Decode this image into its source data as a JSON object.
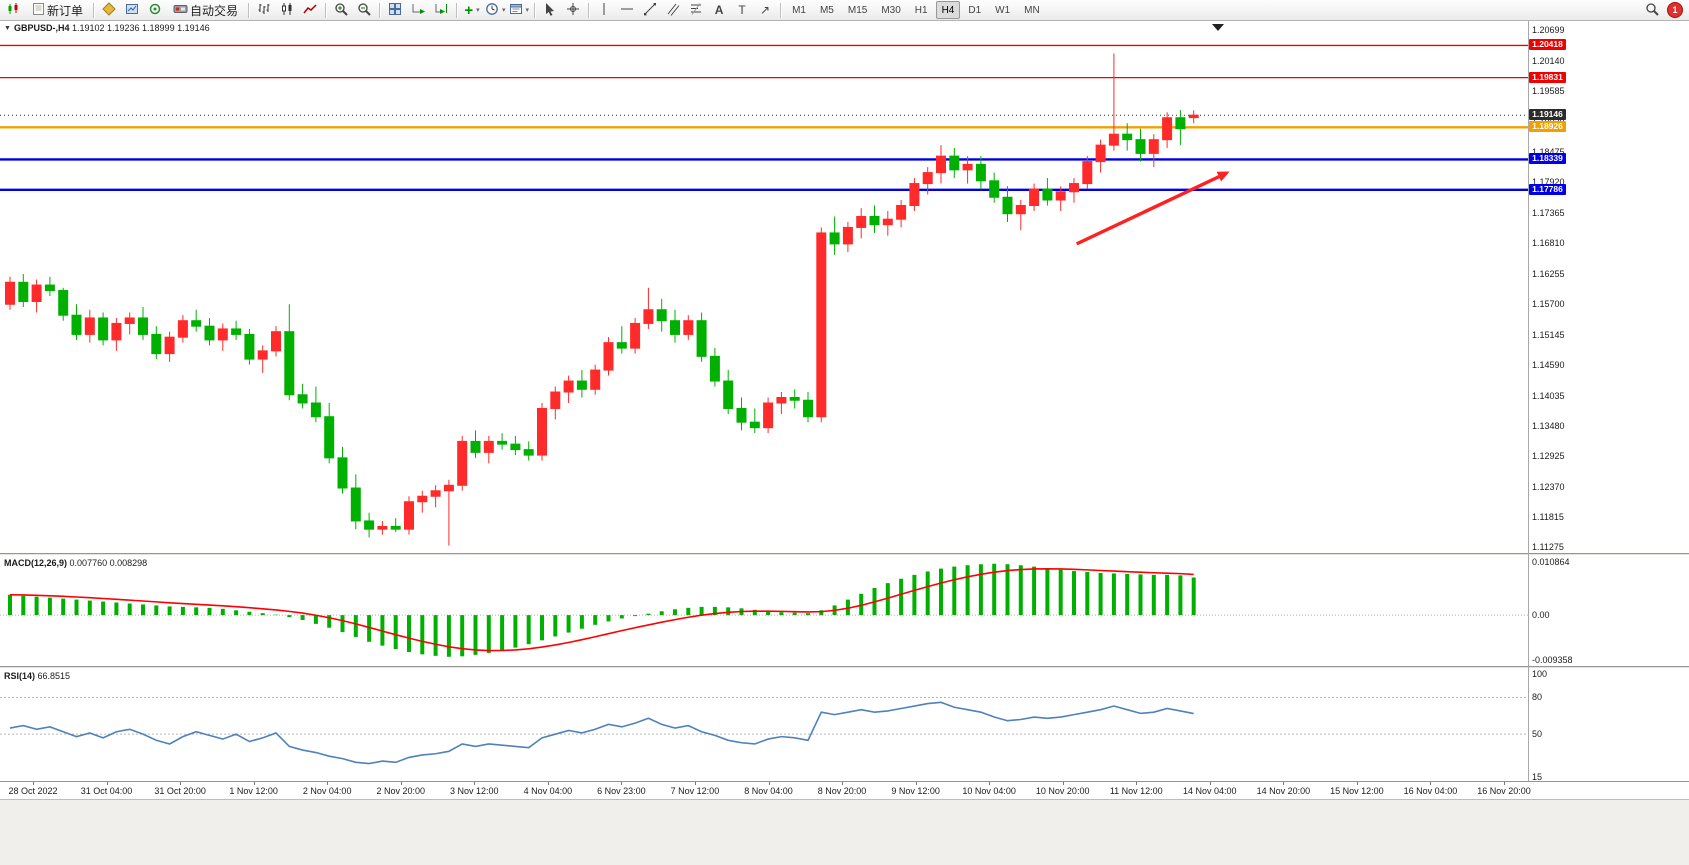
{
  "glyphs": {
    "collapse": "▼",
    "caret": "▾",
    "indicators_plus": "+",
    "text_tool": "A",
    "label_tool": "T",
    "arrows_tool": "↗"
  },
  "toolbar": {
    "new_order": "新订单",
    "autotrading": "自动交易",
    "timeframes": [
      "M1",
      "M5",
      "M15",
      "M30",
      "H1",
      "H4",
      "D1",
      "W1",
      "MN"
    ],
    "active_timeframe": "H4",
    "badge": "1"
  },
  "icons": {
    "new_chart": "mini-candles-svg",
    "new_order": "page-svg",
    "metaeditor": "gold-diamond-svg",
    "strategy_tester": "blue-chart-svg",
    "market_watch": "green-ring-svg",
    "autotrading": "chip-red-led-svg",
    "bar_chart_type": "ohlc-bars-svg",
    "candlestick_type": "candles-svg",
    "line_chart_type": "zigzag-svg",
    "zoom_in": "magnifier-plus-svg",
    "zoom_out": "magnifier-minus-svg",
    "tile_windows": "grid-2x2-svg",
    "auto_scroll": "chart-green-arrow-svg",
    "chart_shift": "chart-shift-arrow-svg",
    "indicators": "green-plus-glyph",
    "periods": "clock-svg",
    "templates": "framed-chart-svg",
    "cursor": "arrow-pointer-svg",
    "crosshair": "crosshair-svg",
    "vertical_line": "vline-svg",
    "horizontal_line": "hline-svg",
    "trendline": "diag-line-svg",
    "channel": "parallel-lines-svg",
    "fibonacci": "fibo-lines-svg",
    "search": "magnifier-svg",
    "notification": "red-circle-badge"
  },
  "chart_data": {
    "type": "candlestick",
    "symbol_label": "GBPUSD-,H4",
    "ohlc_text": "1.19102 1.19236 1.18999 1.19146",
    "timeframe": "H4",
    "colors": {
      "up": "#ff2a2a",
      "down": "#00b000",
      "background": "#ffffff"
    },
    "price_axis": {
      "ticks": [
        "1.20699",
        "1.20140",
        "1.19585",
        "1.19030",
        "1.18475",
        "1.17920",
        "1.17365",
        "1.16810",
        "1.16255",
        "1.15700",
        "1.15145",
        "1.14590",
        "1.14035",
        "1.13480",
        "1.12925",
        "1.12370",
        "1.11815",
        "1.11275"
      ]
    },
    "levels": [
      {
        "price": 1.20418,
        "label": "1.20418",
        "color": "#f00000",
        "style": "solid",
        "width": 1.3
      },
      {
        "price": 1.19831,
        "label": "1.19831",
        "color": "#f00000",
        "style": "solid",
        "width": 1.3
      },
      {
        "price": 1.19146,
        "label": "1.19146",
        "color": "#2b2b2b",
        "style": "dotted",
        "width": 1
      },
      {
        "price": 1.18926,
        "label": "1.18926",
        "color": "#f0a000",
        "style": "solid",
        "width": 2.4
      },
      {
        "price": 1.18339,
        "label": "1.18339",
        "color": "#0000e8",
        "style": "solid",
        "width": 2.4
      },
      {
        "price": 1.17786,
        "label": "1.17786",
        "color": "#0000e8",
        "style": "solid",
        "width": 2.4
      }
    ],
    "time_axis": [
      "28 Oct 2022",
      "31 Oct 04:00",
      "31 Oct 20:00",
      "1 Nov 12:00",
      "2 Nov 04:00",
      "2 Nov 20:00",
      "3 Nov 12:00",
      "4 Nov 04:00",
      "6 Nov 23:00",
      "7 Nov 12:00",
      "8 Nov 04:00",
      "8 Nov 20:00",
      "9 Nov 12:00",
      "10 Nov 04:00",
      "10 Nov 20:00",
      "11 Nov 12:00",
      "14 Nov 04:00",
      "14 Nov 20:00",
      "15 Nov 12:00",
      "16 Nov 04:00",
      "16 Nov 20:00"
    ],
    "candles": [
      [
        1.157,
        1.162,
        1.156,
        1.161
      ],
      [
        1.161,
        1.1625,
        1.1565,
        1.1575
      ],
      [
        1.1575,
        1.1615,
        1.1555,
        1.1605
      ],
      [
        1.1605,
        1.162,
        1.1585,
        1.1595
      ],
      [
        1.1595,
        1.16,
        1.154,
        1.155
      ],
      [
        1.155,
        1.157,
        1.1505,
        1.1515
      ],
      [
        1.1515,
        1.156,
        1.15,
        1.1545
      ],
      [
        1.1545,
        1.1555,
        1.1495,
        1.1505
      ],
      [
        1.1505,
        1.1545,
        1.1485,
        1.1535
      ],
      [
        1.1535,
        1.1555,
        1.1515,
        1.1545
      ],
      [
        1.1545,
        1.1565,
        1.1505,
        1.1515
      ],
      [
        1.1515,
        1.153,
        1.147,
        1.148
      ],
      [
        1.148,
        1.152,
        1.1465,
        1.151
      ],
      [
        1.151,
        1.155,
        1.15,
        1.154
      ],
      [
        1.154,
        1.156,
        1.152,
        1.153
      ],
      [
        1.153,
        1.1545,
        1.1495,
        1.1505
      ],
      [
        1.1505,
        1.1535,
        1.1485,
        1.1525
      ],
      [
        1.1525,
        1.154,
        1.1505,
        1.1515
      ],
      [
        1.1515,
        1.1525,
        1.146,
        1.147
      ],
      [
        1.147,
        1.1495,
        1.1445,
        1.1485
      ],
      [
        1.1485,
        1.153,
        1.1475,
        1.152
      ],
      [
        1.152,
        1.157,
        1.1395,
        1.1405
      ],
      [
        1.1405,
        1.1425,
        1.138,
        1.139
      ],
      [
        1.139,
        1.142,
        1.1355,
        1.1365
      ],
      [
        1.1365,
        1.139,
        1.128,
        1.129
      ],
      [
        1.129,
        1.131,
        1.1225,
        1.1235
      ],
      [
        1.1235,
        1.126,
        1.116,
        1.1175
      ],
      [
        1.1175,
        1.119,
        1.1145,
        1.116
      ],
      [
        1.116,
        1.1175,
        1.115,
        1.1165
      ],
      [
        1.1165,
        1.118,
        1.1155,
        1.116
      ],
      [
        1.116,
        1.122,
        1.115,
        1.121
      ],
      [
        1.121,
        1.123,
        1.119,
        1.122
      ],
      [
        1.122,
        1.124,
        1.12,
        1.123
      ],
      [
        1.123,
        1.125,
        1.113,
        1.124
      ],
      [
        1.124,
        1.133,
        1.123,
        1.132
      ],
      [
        1.132,
        1.134,
        1.129,
        1.13
      ],
      [
        1.13,
        1.133,
        1.128,
        1.132
      ],
      [
        1.132,
        1.1335,
        1.1305,
        1.1315
      ],
      [
        1.1315,
        1.133,
        1.1295,
        1.1305
      ],
      [
        1.1305,
        1.132,
        1.1285,
        1.1295
      ],
      [
        1.1295,
        1.139,
        1.1285,
        1.138
      ],
      [
        1.138,
        1.142,
        1.136,
        1.141
      ],
      [
        1.141,
        1.144,
        1.139,
        1.143
      ],
      [
        1.143,
        1.145,
        1.14,
        1.1415
      ],
      [
        1.1415,
        1.146,
        1.1405,
        1.145
      ],
      [
        1.145,
        1.151,
        1.144,
        1.15
      ],
      [
        1.15,
        1.153,
        1.148,
        1.149
      ],
      [
        1.149,
        1.1545,
        1.148,
        1.1535
      ],
      [
        1.1535,
        1.16,
        1.1525,
        1.156
      ],
      [
        1.156,
        1.158,
        1.152,
        1.154
      ],
      [
        1.154,
        1.156,
        1.15,
        1.1515
      ],
      [
        1.1515,
        1.155,
        1.1505,
        1.154
      ],
      [
        1.154,
        1.1555,
        1.1465,
        1.1475
      ],
      [
        1.1475,
        1.149,
        1.142,
        1.143
      ],
      [
        1.143,
        1.145,
        1.137,
        1.138
      ],
      [
        1.138,
        1.14,
        1.134,
        1.1355
      ],
      [
        1.1355,
        1.138,
        1.1335,
        1.1345
      ],
      [
        1.1345,
        1.14,
        1.1335,
        1.139
      ],
      [
        1.139,
        1.141,
        1.137,
        1.14
      ],
      [
        1.14,
        1.1415,
        1.138,
        1.1395
      ],
      [
        1.1395,
        1.141,
        1.1355,
        1.1365
      ],
      [
        1.1365,
        1.171,
        1.1355,
        1.17
      ],
      [
        1.17,
        1.173,
        1.166,
        1.168
      ],
      [
        1.168,
        1.172,
        1.1665,
        1.171
      ],
      [
        1.171,
        1.1745,
        1.169,
        1.173
      ],
      [
        1.173,
        1.175,
        1.17,
        1.1715
      ],
      [
        1.1715,
        1.174,
        1.1695,
        1.1725
      ],
      [
        1.1725,
        1.176,
        1.171,
        1.175
      ],
      [
        1.175,
        1.18,
        1.174,
        1.179
      ],
      [
        1.179,
        1.182,
        1.177,
        1.181
      ],
      [
        1.181,
        1.186,
        1.179,
        1.184
      ],
      [
        1.184,
        1.1855,
        1.18,
        1.1815
      ],
      [
        1.1815,
        1.184,
        1.179,
        1.1825
      ],
      [
        1.1825,
        1.184,
        1.178,
        1.1795
      ],
      [
        1.1795,
        1.181,
        1.1755,
        1.1765
      ],
      [
        1.1765,
        1.1785,
        1.172,
        1.1735
      ],
      [
        1.1735,
        1.176,
        1.1705,
        1.175
      ],
      [
        1.175,
        1.179,
        1.174,
        1.178
      ],
      [
        1.178,
        1.18,
        1.175,
        1.176
      ],
      [
        1.176,
        1.1785,
        1.174,
        1.1775
      ],
      [
        1.1775,
        1.18,
        1.1755,
        1.179
      ],
      [
        1.179,
        1.184,
        1.178,
        1.183
      ],
      [
        1.183,
        1.187,
        1.181,
        1.186
      ],
      [
        1.186,
        1.2027,
        1.185,
        1.188
      ],
      [
        1.188,
        1.19,
        1.185,
        1.187
      ],
      [
        1.187,
        1.189,
        1.183,
        1.1845
      ],
      [
        1.1845,
        1.188,
        1.182,
        1.187
      ],
      [
        1.187,
        1.192,
        1.1855,
        1.191
      ],
      [
        1.191,
        1.1924,
        1.186,
        1.189
      ],
      [
        1.19102,
        1.19236,
        1.18999,
        1.19146
      ]
    ],
    "annotations": [
      {
        "type": "arrow",
        "color": "#ff2020",
        "from": {
          "bar": 80.2,
          "price": 1.168
        },
        "to": {
          "bar": 91.7,
          "price": 1.1812
        }
      }
    ],
    "indicators": {
      "macd": {
        "label": "MACD(12,26,9)",
        "values_text": "0.007760 0.008298",
        "hist_color": "#00b000",
        "signal_color": "#ff0000",
        "axis_labels": [
          "0.010864",
          "0.00",
          "-0.009358"
        ],
        "histogram": [
          0.0042,
          0.004,
          0.0038,
          0.0036,
          0.0034,
          0.0032,
          0.003,
          0.0028,
          0.0026,
          0.0024,
          0.0022,
          0.002,
          0.0018,
          0.0017,
          0.0016,
          0.0015,
          0.0013,
          0.001,
          0.0007,
          0.0004,
          0.0001,
          -0.0004,
          -0.001,
          -0.0018,
          -0.0026,
          -0.0035,
          -0.0045,
          -0.0055,
          -0.0063,
          -0.007,
          -0.0076,
          -0.0081,
          -0.0084,
          -0.0086,
          -0.0085,
          -0.0082,
          -0.0078,
          -0.0073,
          -0.0067,
          -0.006,
          -0.0052,
          -0.0044,
          -0.0036,
          -0.0028,
          -0.002,
          -0.0013,
          -0.0007,
          -0.0002,
          0.0003,
          0.0008,
          0.0012,
          0.0015,
          0.0017,
          0.0017,
          0.0016,
          0.0014,
          0.0011,
          0.0008,
          0.0006,
          0.0005,
          0.0004,
          0.001,
          0.002,
          0.0032,
          0.0044,
          0.0056,
          0.0066,
          0.0075,
          0.0083,
          0.009,
          0.0096,
          0.01,
          0.0103,
          0.0105,
          0.0106,
          0.0105,
          0.0103,
          0.01,
          0.0097,
          0.0094,
          0.0091,
          0.0089,
          0.0087,
          0.0086,
          0.0085,
          0.0084,
          0.0083,
          0.0083,
          0.0082,
          0.00776
        ]
      },
      "rsi": {
        "label": "RSI(14)",
        "value_text": "66.8515",
        "line_color": "#4f81bd",
        "axis_labels": [
          "100",
          "80",
          "50",
          "15"
        ],
        "levels": [
          80,
          50
        ],
        "values": [
          55,
          57,
          54,
          56,
          52,
          48,
          51,
          47,
          52,
          54,
          50,
          45,
          42,
          48,
          52,
          49,
          46,
          50,
          44,
          47,
          51,
          40,
          37,
          35,
          32,
          30,
          27,
          26,
          28,
          27,
          31,
          33,
          34,
          36,
          42,
          40,
          42,
          41,
          40,
          39,
          47,
          50,
          53,
          51,
          54,
          58,
          56,
          59,
          63,
          58,
          55,
          57,
          52,
          49,
          45,
          43,
          42,
          46,
          48,
          47,
          45,
          68,
          66,
          68,
          70,
          68,
          69,
          71,
          73,
          75,
          76,
          72,
          70,
          68,
          64,
          61,
          62,
          64,
          63,
          64,
          66,
          68,
          70,
          73,
          70,
          67,
          68,
          71,
          69,
          66.85
        ]
      }
    }
  }
}
